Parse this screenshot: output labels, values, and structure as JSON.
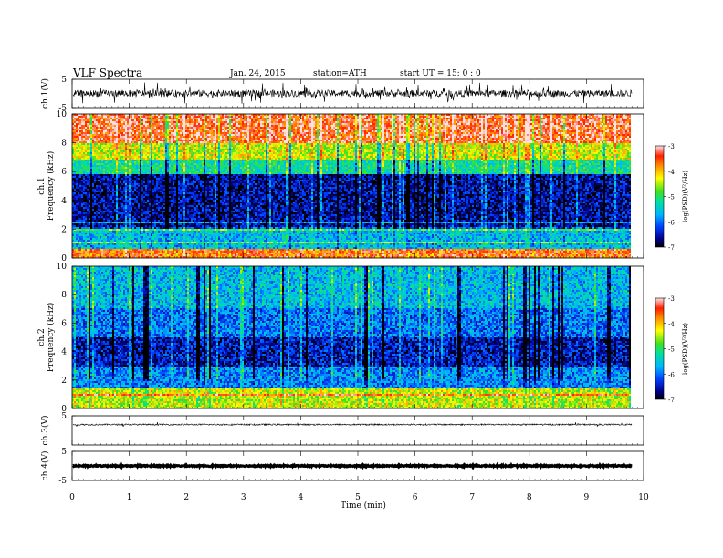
{
  "header": {
    "title": "VLF  Spectra",
    "date": "Jan. 24, 2015",
    "station": "station=ATH",
    "start": "start  UT  =   15: 0  : 0"
  },
  "chart_data": [
    {
      "type": "line",
      "ylabel": "ch.1(V)",
      "ylim": [
        -5,
        5
      ],
      "yticks": [
        "5",
        "-5"
      ],
      "description_values": {
        "mean": 0,
        "amplitude_range": [
          -3,
          3
        ]
      }
    },
    {
      "type": "heatmap",
      "ylabel_top": "ch.1",
      "ylabel": "Frequency (kHz)",
      "ylim": [
        0,
        10
      ],
      "yticks": [
        "0",
        "2",
        "4",
        "6",
        "8",
        "10"
      ],
      "colorbar": {
        "label": "log(PSD)(V²/Hz)",
        "range": [
          -7,
          -3
        ],
        "ticks": [
          "-3",
          "-4",
          "-5",
          "-6",
          "-7"
        ]
      },
      "bands": [
        {
          "f": [
            0,
            0.6
          ],
          "logpsd": -3.6
        },
        {
          "f": [
            0.6,
            2.2
          ],
          "logpsd": -5.6
        },
        {
          "f": [
            2.2,
            5.8
          ],
          "logpsd": -6.6
        },
        {
          "f": [
            5.8,
            6.8
          ],
          "logpsd": -5.2
        },
        {
          "f": [
            6.8,
            8.0
          ],
          "logpsd": -4.4
        },
        {
          "f": [
            8.0,
            10
          ],
          "logpsd": -3.4
        }
      ]
    },
    {
      "type": "heatmap",
      "ylabel_top": "ch.2",
      "ylabel": "Frequency (kHz)",
      "ylim": [
        0,
        10
      ],
      "yticks": [
        "0",
        "2",
        "4",
        "6",
        "8",
        "10"
      ],
      "colorbar": {
        "label": "log(PSD)(V²/Hz)",
        "range": [
          -7,
          -3
        ],
        "ticks": [
          "-3",
          "-4",
          "-5",
          "-6",
          "-7"
        ]
      },
      "bands": [
        {
          "f": [
            0,
            1.4
          ],
          "logpsd": -4.4
        },
        {
          "f": [
            1.4,
            3.0
          ],
          "logpsd": -5.9
        },
        {
          "f": [
            3.0,
            5.0
          ],
          "logpsd": -6.5
        },
        {
          "f": [
            5.0,
            7.0
          ],
          "logpsd": -6.0
        },
        {
          "f": [
            7.0,
            10
          ],
          "logpsd": -5.6
        }
      ]
    },
    {
      "type": "line",
      "ylabel": "ch.3(V)",
      "ylim": [
        -5,
        5
      ],
      "yticks": [
        "5"
      ],
      "description_values": {
        "mean": 2
      }
    },
    {
      "type": "line",
      "ylabel": "ch.4(V)",
      "ylim": [
        -5,
        5
      ],
      "yticks": [
        "5",
        "-5"
      ],
      "description_values": {
        "mean": 0
      }
    }
  ],
  "xaxis": {
    "xlabel": "Time  (min)",
    "xlim": [
      0,
      10
    ],
    "ticks": [
      "0",
      "1",
      "2",
      "3",
      "4",
      "5",
      "6",
      "7",
      "8",
      "9",
      "10"
    ],
    "data_end_min": 9.8
  }
}
